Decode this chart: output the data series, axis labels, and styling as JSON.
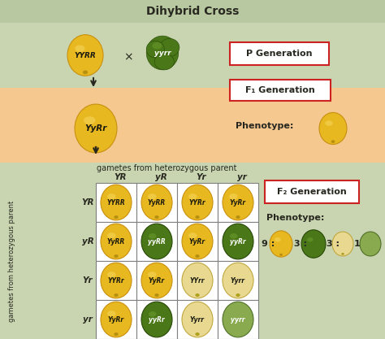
{
  "title": "Dihybrid Cross",
  "bg_light_green": "#c8d5b0",
  "bg_orange": "#f5c890",
  "bg_header": "#b8c8a0",
  "yellow_pea": "#e8b820",
  "yellow_pea_hi": "#f8d860",
  "yellow_pea_outline": "#c89010",
  "green_pea": "#4a7818",
  "green_pea_hi": "#70a030",
  "green_pea_outline": "#284808",
  "pale_yellow_pea": "#e8d890",
  "pale_yellow_outline": "#c0a840",
  "pale_green_pea": "#8aaa50",
  "pale_green_outline": "#507028",
  "text_dark": "#282820",
  "box_red": "#cc2222",
  "grid_line": "#808080",
  "row_labels": [
    "YR",
    "yR",
    "Yr",
    "yr"
  ],
  "col_labels": [
    "YR",
    "yR",
    "Yr",
    "yr"
  ],
  "grid_genotypes": [
    [
      "YYRR",
      "YyRR",
      "YYRr",
      "YyRr"
    ],
    [
      "YyRR",
      "yyRR",
      "YyRr",
      "yyRr"
    ],
    [
      "YYRr",
      "YyRr",
      "YYrr",
      "Yyrr"
    ],
    [
      "YyRr",
      "yyRr",
      "Yyrr",
      "yyrr"
    ]
  ],
  "grid_colors": [
    [
      "yellow",
      "yellow",
      "yellow",
      "yellow"
    ],
    [
      "yellow",
      "green",
      "yellow",
      "green"
    ],
    [
      "yellow",
      "yellow",
      "pale_yellow",
      "pale_yellow"
    ],
    [
      "yellow",
      "green",
      "pale_yellow",
      "pale_green"
    ]
  ],
  "p_gen_label": "P Generation",
  "f1_gen_label": "F₁ Generation",
  "f2_gen_label": "F₂ Generation",
  "phenotype_label": "Phenotype:",
  "gametes_label": "gametes from heterozygous parent",
  "side_label": "gametes from heterozygous parent",
  "p_yellow_genotype": "YYRR",
  "p_green_genotype": "yyrr",
  "f1_genotype": "YyRr",
  "figsize": [
    4.74,
    4.17
  ],
  "dpi": 100
}
